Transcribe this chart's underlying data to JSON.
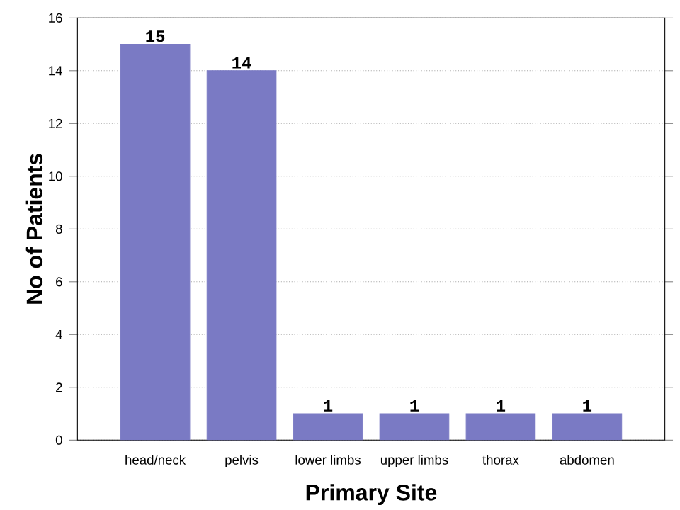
{
  "chart_data": {
    "type": "bar",
    "xlabel": "Primary Site",
    "ylabel": "No of Patients",
    "categories": [
      "head/neck",
      "pelvis",
      "lower limbs",
      "upper limbs",
      "thorax",
      "abdomen"
    ],
    "values": [
      15,
      14,
      1,
      1,
      1,
      1
    ],
    "color": "#7a7ac4",
    "ylim": [
      0,
      16
    ],
    "yticks": [
      0,
      2,
      4,
      6,
      8,
      10,
      12,
      14,
      16
    ],
    "grid": "y",
    "data_labels": true
  }
}
